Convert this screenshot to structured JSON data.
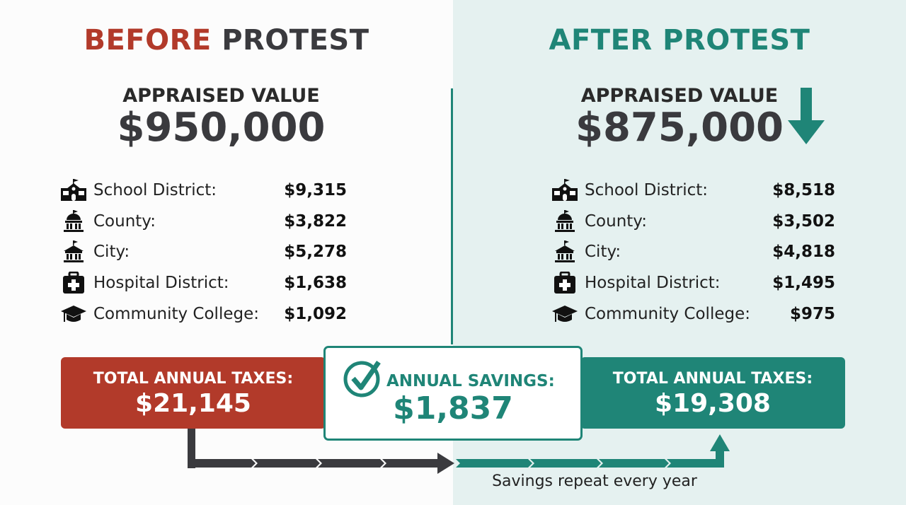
{
  "colors": {
    "before": "#b23a2a",
    "after": "#1f8577",
    "dark": "#3a3a3e",
    "after_bg": "#e5f1f0"
  },
  "before": {
    "title_word1": "BEFORE",
    "title_word2": "PROTEST",
    "appraised_label": "APPRAISED VALUE",
    "appraised_value": "$950,000",
    "items": [
      {
        "icon": "school-icon",
        "label": "School District:",
        "value": "$9,315"
      },
      {
        "icon": "county-building-icon",
        "label": "County:",
        "value": "$3,822"
      },
      {
        "icon": "city-hall-icon",
        "label": "City:",
        "value": "$5,278"
      },
      {
        "icon": "medical-kit-icon",
        "label": "Hospital District:",
        "value": "$1,638"
      },
      {
        "icon": "graduation-cap-icon",
        "label": "Community College:",
        "value": "$1,092"
      }
    ],
    "total_label": "TOTAL ANNUAL TAXES:",
    "total_value": "$21,145"
  },
  "after": {
    "title": "AFTER PROTEST",
    "appraised_label": "APPRAISED VALUE",
    "appraised_value": "$875,000",
    "trend_icon": "down-arrow-icon",
    "items": [
      {
        "icon": "school-icon",
        "label": "School District:",
        "value": "$8,518"
      },
      {
        "icon": "county-building-icon",
        "label": "County:",
        "value": "$3,502"
      },
      {
        "icon": "city-hall-icon",
        "label": "City:",
        "value": "$4,818"
      },
      {
        "icon": "medical-kit-icon",
        "label": "Hospital District:",
        "value": "$1,495"
      },
      {
        "icon": "graduation-cap-icon",
        "label": "Community College:",
        "value": "$975"
      }
    ],
    "total_label": "TOTAL ANNUAL TAXES:",
    "total_value": "$19,308"
  },
  "savings": {
    "icon": "check-circle-icon",
    "label": "ANNUAL SAVINGS:",
    "value": "$1,837",
    "caption": "Savings repeat every year"
  }
}
